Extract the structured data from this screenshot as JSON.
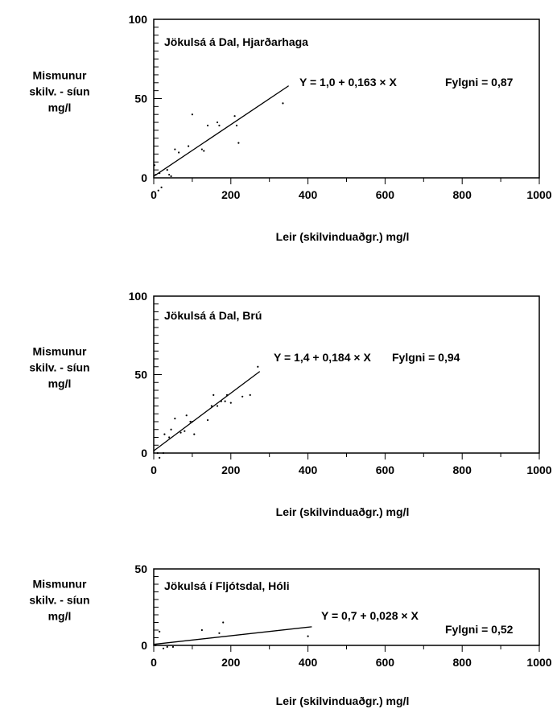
{
  "chart_data": [
    {
      "type": "scatter",
      "title": "Jökulsá á Dal, Hjarðarhaga",
      "ylabel": [
        "Mismunur",
        "skilv. - síun",
        "mg/l"
      ],
      "xlabel": "Leir (skilvinduaðgr.)  mg/l",
      "xlim": [
        0,
        1000
      ],
      "ylim": [
        0,
        100
      ],
      "xticks": [
        0,
        200,
        400,
        600,
        800,
        1000
      ],
      "yticks": [
        0,
        50,
        100
      ],
      "equation": "Y = 1,0 + 0,163 × X",
      "correlation": "Fylgni = 0,87",
      "fit": {
        "intercept": 1.0,
        "slope": 0.163,
        "x_range": [
          0,
          350
        ]
      },
      "points": [
        [
          2,
          8
        ],
        [
          5,
          2
        ],
        [
          12,
          -8
        ],
        [
          15,
          3
        ],
        [
          20,
          -6
        ],
        [
          35,
          5
        ],
        [
          40,
          2
        ],
        [
          45,
          1
        ],
        [
          55,
          18
        ],
        [
          65,
          16
        ],
        [
          90,
          20
        ],
        [
          100,
          40
        ],
        [
          125,
          18
        ],
        [
          130,
          17
        ],
        [
          140,
          33
        ],
        [
          165,
          35
        ],
        [
          170,
          33
        ],
        [
          210,
          39
        ],
        [
          215,
          33
        ],
        [
          220,
          22
        ],
        [
          335,
          47
        ]
      ]
    },
    {
      "type": "scatter",
      "title": "Jökulsá á Dal, Brú",
      "ylabel": [
        "Mismunur",
        "skilv. - síun",
        "mg/l"
      ],
      "xlabel": "Leir (skilvinduaðgr.)  mg/l",
      "xlim": [
        0,
        1000
      ],
      "ylim": [
        0,
        100
      ],
      "xticks": [
        0,
        200,
        400,
        600,
        800,
        1000
      ],
      "yticks": [
        0,
        50,
        100
      ],
      "equation": "Y = 1,4 + 0,184 × X",
      "correlation": "Fylgni = 0,94",
      "fit": {
        "intercept": 1.4,
        "slope": 0.184,
        "x_range": [
          0,
          275
        ]
      },
      "points": [
        [
          10,
          0
        ],
        [
          15,
          -3
        ],
        [
          25,
          0
        ],
        [
          28,
          12
        ],
        [
          40,
          10
        ],
        [
          45,
          15
        ],
        [
          55,
          22
        ],
        [
          70,
          13
        ],
        [
          80,
          14
        ],
        [
          85,
          24
        ],
        [
          95,
          20
        ],
        [
          100,
          20
        ],
        [
          105,
          12
        ],
        [
          140,
          21
        ],
        [
          150,
          30
        ],
        [
          155,
          37
        ],
        [
          165,
          30
        ],
        [
          175,
          33
        ],
        [
          185,
          33
        ],
        [
          190,
          37
        ],
        [
          200,
          32
        ],
        [
          230,
          36
        ],
        [
          250,
          37
        ],
        [
          270,
          55
        ]
      ]
    },
    {
      "type": "scatter",
      "title": "Jökulsá í Fljótsdal, Hóli",
      "ylabel": [
        "Mismunur",
        "skilv. - síun",
        "mg/l"
      ],
      "xlabel": "Leir (skilvinduaðgr.)  mg/l",
      "xlim": [
        0,
        1000
      ],
      "ylim": [
        0,
        50
      ],
      "xticks": [
        0,
        200,
        400,
        600,
        800,
        1000
      ],
      "yticks": [
        0,
        50
      ],
      "equation": "Y = 0,7 + 0,028 × X",
      "correlation": "Fylgni = 0,52",
      "fit": {
        "intercept": 0.7,
        "slope": 0.028,
        "x_range": [
          0,
          410
        ]
      },
      "points": [
        [
          5,
          0
        ],
        [
          15,
          9
        ],
        [
          25,
          -2
        ],
        [
          35,
          -1
        ],
        [
          50,
          -1
        ],
        [
          125,
          10
        ],
        [
          170,
          8
        ],
        [
          180,
          15
        ],
        [
          400,
          6
        ]
      ]
    }
  ]
}
